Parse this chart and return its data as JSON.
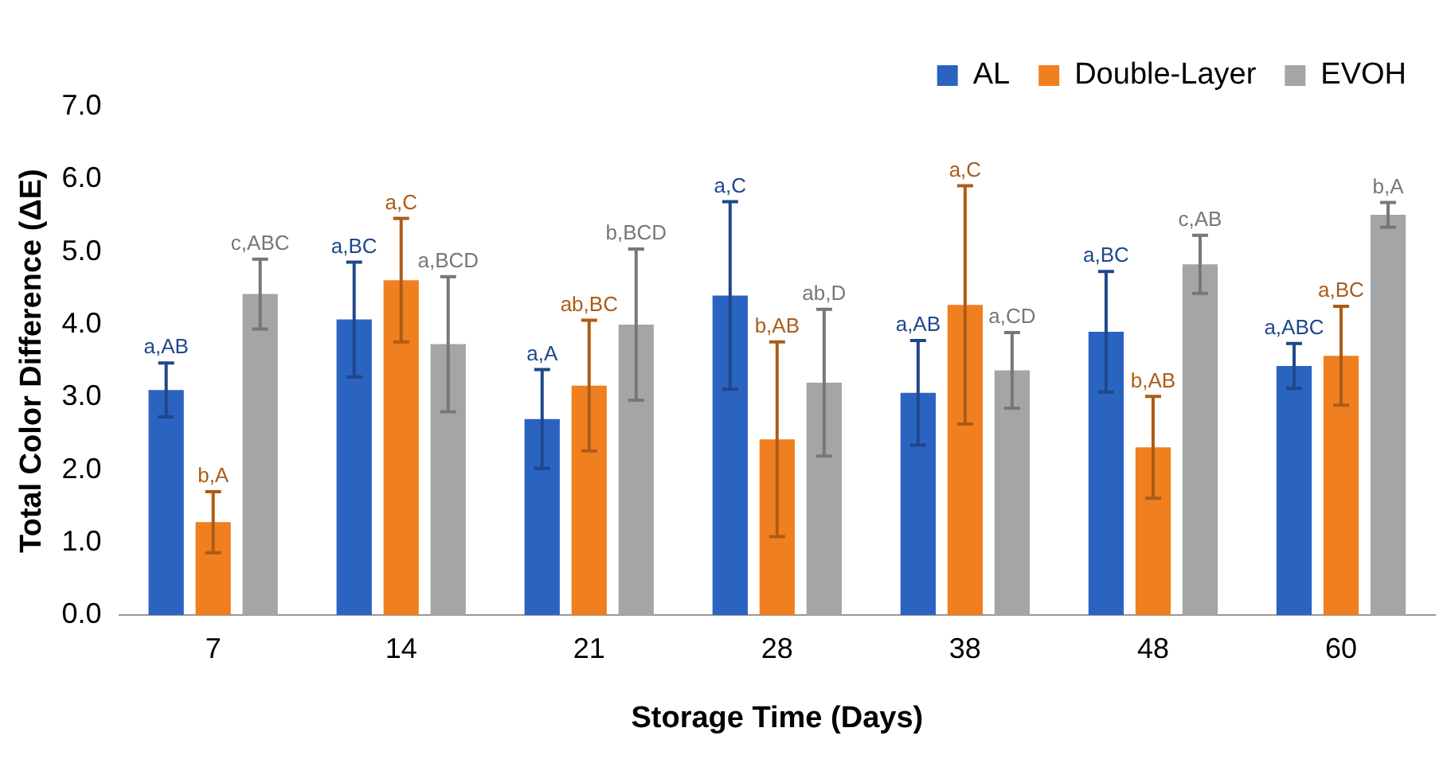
{
  "chart_data": {
    "type": "bar",
    "xlabel": "Storage Time (Days)",
    "ylabel": "Total Color Difference (ΔE)",
    "categories": [
      "7",
      "14",
      "21",
      "28",
      "38",
      "48",
      "60"
    ],
    "series": [
      {
        "name": "AL",
        "color": "#2b63c1",
        "values": [
          3.1,
          4.07,
          2.7,
          4.4,
          3.06,
          3.9,
          3.43
        ],
        "errors": [
          0.37,
          0.79,
          0.68,
          1.29,
          0.72,
          0.83,
          0.31
        ]
      },
      {
        "name": "Double-Layer",
        "color": "#f07f1f",
        "values": [
          1.28,
          4.61,
          3.16,
          2.42,
          4.27,
          2.31,
          3.57
        ],
        "errors": [
          0.42,
          0.85,
          0.9,
          1.34,
          1.64,
          0.7,
          0.68
        ]
      },
      {
        "name": "EVOH",
        "color": "#a5a5a5",
        "values": [
          4.42,
          3.73,
          4.0,
          3.2,
          3.37,
          4.83,
          5.51
        ],
        "errors": [
          0.48,
          0.93,
          1.04,
          1.01,
          0.52,
          0.4,
          0.17
        ]
      }
    ],
    "annotations": [
      "a,AB",
      "b,A",
      "c,ABC",
      "a,BC",
      "a,C",
      "a,BCD",
      "a,A",
      "ab,BC",
      "b,BCD",
      "a,C",
      "b,AB",
      "ab,D",
      "a,AB",
      "a,C",
      "a,CD",
      "a,BC",
      "b,AB",
      "c,AB",
      "a,ABC",
      "a,BC",
      "b,A"
    ],
    "ylim": [
      0,
      7
    ],
    "yticks": [
      {
        "value": 0,
        "label": "0.0"
      },
      {
        "value": 1,
        "label": "1.0"
      },
      {
        "value": 2,
        "label": "2.0"
      },
      {
        "value": 3,
        "label": "3.0"
      },
      {
        "value": 4,
        "label": "4.0"
      },
      {
        "value": 5,
        "label": "5.0"
      },
      {
        "value": 6,
        "label": "6.0"
      },
      {
        "value": 7,
        "label": "7.0"
      }
    ],
    "grid": false,
    "legend": "top right"
  }
}
